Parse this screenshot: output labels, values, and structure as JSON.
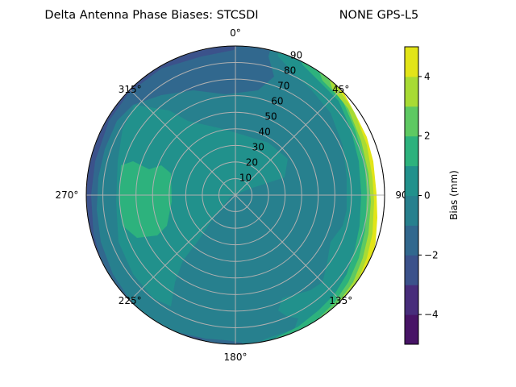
{
  "chart_data": {
    "type": "contourf-polar",
    "title_left": "Delta Antenna Phase Biases: STCSDI",
    "title_right": "NONE GPS-L5",
    "angular_ticks": [
      "0°",
      "45°",
      "90°",
      "135°",
      "180°",
      "225°",
      "270°",
      "315°"
    ],
    "angular_direction": "clockwise, 0° at top",
    "radial_ticks": [
      "10",
      "20",
      "30",
      "40",
      "50",
      "60",
      "70",
      "80",
      "90"
    ],
    "radial_range": [
      0,
      90
    ],
    "grid": true,
    "colorbar": {
      "label": "Bias (mm)",
      "levels": [
        -5,
        -4,
        -3,
        -2,
        -1,
        0,
        1,
        2,
        3,
        4,
        5
      ],
      "ticks": [
        "−4",
        "−2",
        "0",
        "2",
        "4"
      ],
      "tick_values": [
        -4,
        -2,
        0,
        2,
        4
      ],
      "colormap": "viridis",
      "colors": [
        "#471466",
        "#472d7b",
        "#3b528b",
        "#31688e",
        "#27808e",
        "#21918c",
        "#2db27d",
        "#5ec962",
        "#a8db34",
        "#e2e418"
      ]
    }
  }
}
